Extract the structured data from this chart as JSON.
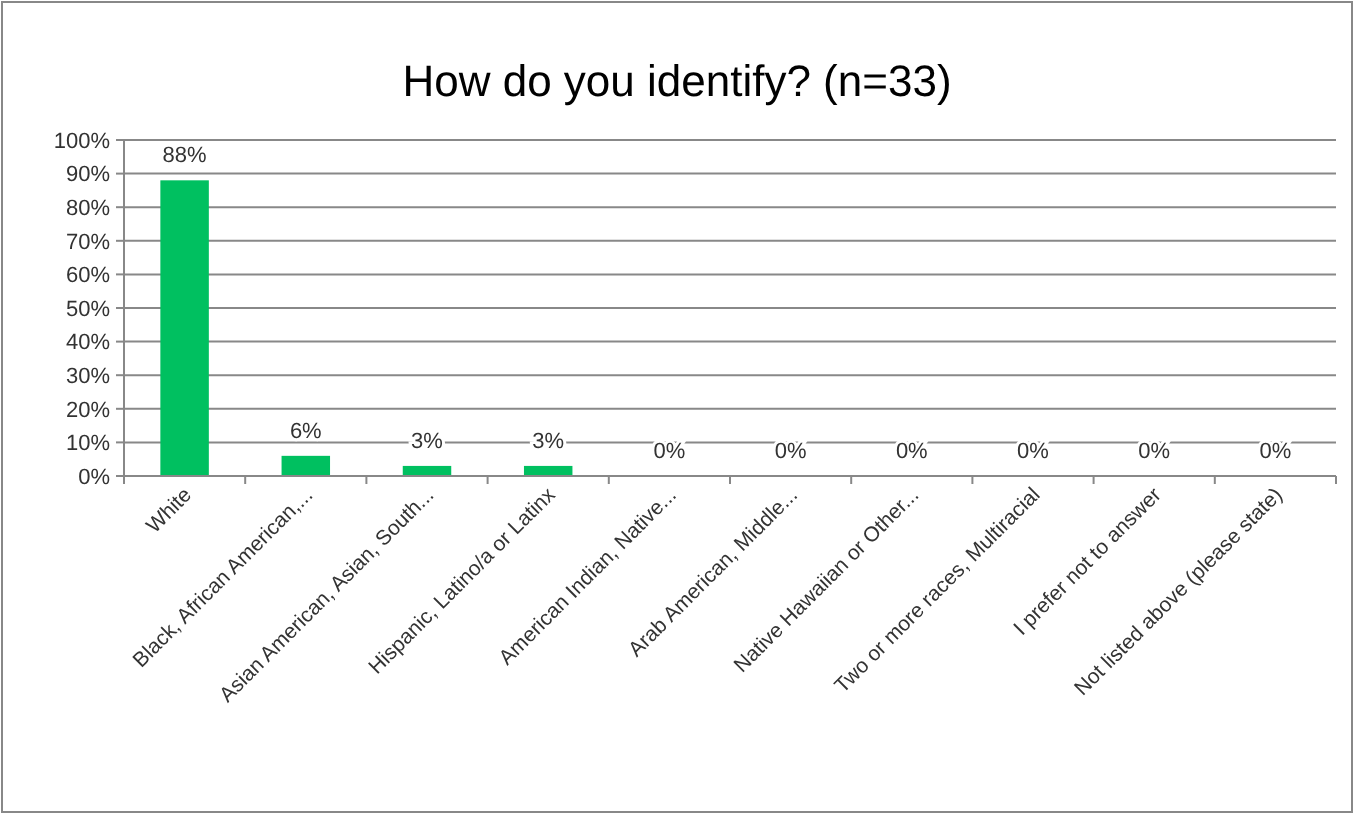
{
  "chart_data": {
    "type": "bar",
    "title": "How do you identify? (n=33)",
    "categories": [
      "White",
      "Black, African American,...",
      "Asian American, Asian, South...",
      "Hispanic, Latino/a or Latinx",
      "American Indian, Native...",
      "Arab American, Middle...",
      "Native Hawaiian or Other...",
      "Two or more races, Multiracial",
      "I prefer not to answer",
      "Not listed above (please state)"
    ],
    "values": [
      88,
      6,
      3,
      3,
      0,
      0,
      0,
      0,
      0,
      0
    ],
    "color": "#00c060",
    "ylim": [
      0,
      100
    ],
    "yticks": [
      {
        "value": 0,
        "label": "0%"
      },
      {
        "value": 10,
        "label": "10%"
      },
      {
        "value": 20,
        "label": "20%"
      },
      {
        "value": 30,
        "label": "30%"
      },
      {
        "value": 40,
        "label": "40%"
      },
      {
        "value": 50,
        "label": "50%"
      },
      {
        "value": 60,
        "label": "60%"
      },
      {
        "value": 70,
        "label": "70%"
      },
      {
        "value": 80,
        "label": "80%"
      },
      {
        "value": 90,
        "label": "90%"
      },
      {
        "value": 100,
        "label": "100%"
      }
    ],
    "value_labels": [
      "88%",
      "6%",
      "3%",
      "3%",
      "0%",
      "0%",
      "0%",
      "0%",
      "0%",
      "0%"
    ],
    "grid": "y"
  }
}
